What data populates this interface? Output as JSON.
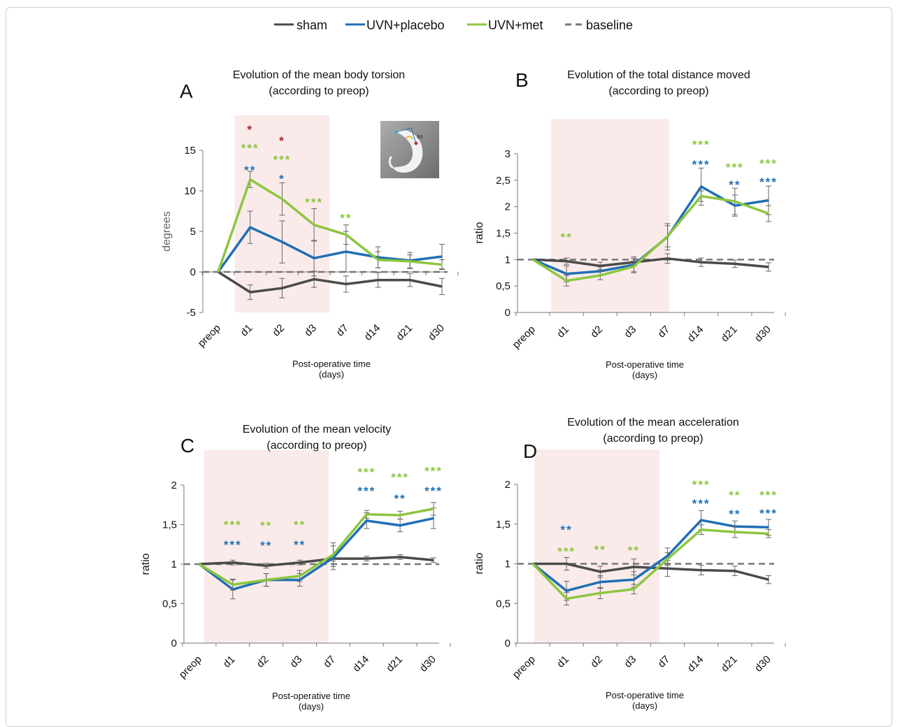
{
  "legend": [
    {
      "name": "sham",
      "color": "#4a4a4a",
      "dash": false
    },
    {
      "name": "UVN+placebo",
      "color": "#1f6fb5",
      "dash": false
    },
    {
      "name": "UVN+met",
      "color": "#8cc63f",
      "dash": false
    },
    {
      "name": "baseline",
      "color": "#777777",
      "dash": true
    }
  ],
  "chart_data": [
    {
      "panel": "A",
      "type": "line",
      "title_line1": "Evolution of the mean body torsion",
      "title_line2": "(according to preop)",
      "xlabel_line1": "Post-operative time",
      "xlabel_line2": "(days)",
      "ylabel": "degrees",
      "categories": [
        "preop",
        "d1",
        "d2",
        "d3",
        "d7",
        "d14",
        "d21",
        "d30"
      ],
      "ylim": [
        -5,
        15
      ],
      "yticks": [
        -5,
        0,
        5,
        10,
        15
      ],
      "yticklabels": [
        "-5",
        "0",
        "5",
        "10",
        "15"
      ],
      "shade": [
        1,
        3
      ],
      "series": [
        {
          "name": "sham",
          "values": [
            0,
            -2.5,
            -2,
            -0.9,
            -1.5,
            -1,
            -1,
            -1.8
          ],
          "err": [
            0,
            0.9,
            1.2,
            1,
            1,
            0.9,
            0.8,
            1
          ],
          "color": "#4a4a4a"
        },
        {
          "name": "UVN+placebo",
          "values": [
            0,
            5.5,
            3.7,
            1.7,
            2.5,
            1.8,
            1.4,
            1.9
          ],
          "err": [
            0,
            2,
            2.6,
            2.2,
            2.5,
            1.3,
            1,
            1.5
          ],
          "color": "#1f6fb5"
        },
        {
          "name": "UVN+met",
          "values": [
            0,
            11.4,
            9,
            5.8,
            4.6,
            1.5,
            1.3,
            0.9
          ],
          "err": [
            0,
            1,
            2,
            2,
            1.2,
            1,
            0.8,
            0.6
          ],
          "color": "#8cc63f"
        },
        {
          "name": "baseline",
          "values": [
            0,
            0,
            0,
            0,
            0,
            0,
            0,
            0
          ],
          "color": "#777777",
          "dash": true
        }
      ],
      "stars": [
        {
          "x": 1,
          "y": 17.6,
          "text": "*",
          "color": "#b01c1c"
        },
        {
          "x": 2,
          "y": 16.2,
          "text": "*",
          "color": "#b01c1c"
        },
        {
          "x": 1,
          "y": 15.3,
          "text": "***",
          "color": "#8cc63f"
        },
        {
          "x": 2,
          "y": 13.9,
          "text": "***",
          "color": "#8cc63f"
        },
        {
          "x": 1,
          "y": 12.6,
          "text": "**",
          "color": "#1f6fb5"
        },
        {
          "x": 2,
          "y": 11.5,
          "text": "*",
          "color": "#1f6fb5"
        },
        {
          "x": 3,
          "y": 8.6,
          "text": "***",
          "color": "#8cc63f"
        },
        {
          "x": 4,
          "y": 6.7,
          "text": "**",
          "color": "#8cc63f"
        }
      ]
    },
    {
      "panel": "B",
      "type": "line",
      "title_line1": "Evolution of the total distance moved",
      "title_line2": "(according to preop)",
      "xlabel_line1": "Post-operative time",
      "xlabel_line2": "(days)",
      "ylabel": "ratio",
      "categories": [
        "preop",
        "d1",
        "d2",
        "d3",
        "d7",
        "d14",
        "d21",
        "d30"
      ],
      "ylim": [
        0,
        3
      ],
      "yticks": [
        0,
        0.5,
        1,
        1.5,
        2,
        2.5,
        3
      ],
      "yticklabels": [
        "0",
        "0,5",
        "1",
        "1,5",
        "2",
        "2,5",
        "3"
      ],
      "shade": [
        1,
        3.6
      ],
      "series": [
        {
          "name": "sham",
          "values": [
            1,
            0.97,
            0.88,
            0.95,
            1.02,
            0.95,
            0.92,
            0.86
          ],
          "err": [
            0,
            0.06,
            0.07,
            0.07,
            0.09,
            0.08,
            0.07,
            0.08
          ],
          "color": "#4a4a4a"
        },
        {
          "name": "UVN+placebo",
          "values": [
            1,
            0.73,
            0.78,
            0.9,
            1.43,
            2.38,
            2.02,
            2.12
          ],
          "err": [
            0,
            0.15,
            0.08,
            0.15,
            0.25,
            0.35,
            0.2,
            0.27
          ],
          "color": "#1f6fb5"
        },
        {
          "name": "UVN+met",
          "values": [
            1,
            0.6,
            0.7,
            0.87,
            1.44,
            2.2,
            2.1,
            1.87
          ],
          "err": [
            0,
            0.1,
            0.08,
            0.1,
            0.2,
            0.1,
            0.25,
            0.15
          ],
          "color": "#8cc63f"
        },
        {
          "name": "baseline",
          "values": [
            1,
            1,
            1,
            1,
            1,
            1,
            1,
            1
          ],
          "color": "#777777",
          "dash": true
        }
      ],
      "stars": [
        {
          "x": 1,
          "y": 1.43,
          "text": "**",
          "color": "#8cc63f"
        },
        {
          "x": 5,
          "y": 3.18,
          "text": "***",
          "color": "#8cc63f"
        },
        {
          "x": 5,
          "y": 2.8,
          "text": "***",
          "color": "#1f6fb5"
        },
        {
          "x": 6,
          "y": 2.75,
          "text": "***",
          "color": "#8cc63f"
        },
        {
          "x": 6,
          "y": 2.42,
          "text": "**",
          "color": "#1f6fb5"
        },
        {
          "x": 7,
          "y": 2.82,
          "text": "***",
          "color": "#8cc63f"
        },
        {
          "x": 7,
          "y": 2.47,
          "text": "***",
          "color": "#1f6fb5"
        }
      ]
    },
    {
      "panel": "C",
      "type": "line",
      "title_line1": "Evolution of the mean velocity",
      "title_line2": "(according to preop)",
      "xlabel_line1": "Post-operative time",
      "xlabel_line2": "(days)",
      "ylabel": "ratio",
      "categories": [
        "preop",
        "d1",
        "d2",
        "d3",
        "d7",
        "d14",
        "d21",
        "d30"
      ],
      "ylim": [
        0,
        2
      ],
      "yticks": [
        0,
        0.5,
        1,
        1.5,
        2
      ],
      "yticklabels": [
        "0",
        "0,5",
        "1",
        "1,5",
        "2"
      ],
      "shade": [
        0.6,
        3.4
      ],
      "series": [
        {
          "name": "sham",
          "values": [
            1,
            1.02,
            0.98,
            1.02,
            1.07,
            1.07,
            1.09,
            1.05
          ],
          "err": [
            0,
            0.03,
            0.03,
            0.03,
            0.03,
            0.03,
            0.03,
            0.03
          ],
          "color": "#4a4a4a"
        },
        {
          "name": "UVN+placebo",
          "values": [
            1,
            0.68,
            0.8,
            0.8,
            1.08,
            1.55,
            1.49,
            1.58
          ],
          "err": [
            0,
            0.12,
            0.08,
            0.08,
            0.15,
            0.1,
            0.08,
            0.13
          ],
          "color": "#1f6fb5"
        },
        {
          "name": "UVN+met",
          "values": [
            1,
            0.74,
            0.8,
            0.85,
            1.12,
            1.63,
            1.62,
            1.7
          ],
          "err": [
            0,
            0.07,
            0.08,
            0.07,
            0.15,
            0.05,
            0.05,
            0.08
          ],
          "color": "#8cc63f"
        },
        {
          "name": "baseline",
          "values": [
            1,
            1,
            1,
            1,
            1,
            1,
            1,
            1
          ],
          "color": "#777777",
          "dash": true
        }
      ],
      "stars": [
        {
          "x": 1,
          "y": 1.5,
          "text": "***",
          "color": "#8cc63f"
        },
        {
          "x": 1,
          "y": 1.25,
          "text": "***",
          "color": "#1f6fb5"
        },
        {
          "x": 2,
          "y": 1.49,
          "text": "**",
          "color": "#8cc63f"
        },
        {
          "x": 2,
          "y": 1.24,
          "text": "**",
          "color": "#1f6fb5"
        },
        {
          "x": 3,
          "y": 1.5,
          "text": "**",
          "color": "#8cc63f"
        },
        {
          "x": 3,
          "y": 1.25,
          "text": "**",
          "color": "#1f6fb5"
        },
        {
          "x": 5,
          "y": 2.17,
          "text": "***",
          "color": "#8cc63f"
        },
        {
          "x": 5,
          "y": 1.93,
          "text": "***",
          "color": "#1f6fb5"
        },
        {
          "x": 6,
          "y": 2.1,
          "text": "***",
          "color": "#8cc63f"
        },
        {
          "x": 6,
          "y": 1.83,
          "text": "**",
          "color": "#1f6fb5"
        },
        {
          "x": 7,
          "y": 2.18,
          "text": "***",
          "color": "#8cc63f"
        },
        {
          "x": 7,
          "y": 1.93,
          "text": "***",
          "color": "#1f6fb5"
        }
      ]
    },
    {
      "panel": "D",
      "type": "line",
      "title_line1": "Evolution of the mean acceleration",
      "title_line2": "(according to preop)",
      "xlabel_line1": "Post-operative time",
      "xlabel_line2": "(days)",
      "ylabel": "ratio",
      "categories": [
        "preop",
        "d1",
        "d2",
        "d3",
        "d7",
        "d14",
        "d21",
        "d30"
      ],
      "ylim": [
        0,
        2
      ],
      "yticks": [
        0,
        0.5,
        1,
        1.5,
        2
      ],
      "yticklabels": [
        "0",
        "0,5",
        "1",
        "1,5",
        "2"
      ],
      "shade": [
        0.5,
        3.3
      ],
      "series": [
        {
          "name": "sham",
          "values": [
            1,
            1,
            0.9,
            0.96,
            0.94,
            0.92,
            0.91,
            0.8
          ],
          "err": [
            0,
            0.08,
            0.07,
            0.1,
            0.1,
            0.06,
            0.06,
            0.05
          ],
          "color": "#4a4a4a"
        },
        {
          "name": "UVN+placebo",
          "values": [
            1,
            0.66,
            0.77,
            0.8,
            1.1,
            1.55,
            1.47,
            1.46
          ],
          "err": [
            0,
            0.12,
            0.08,
            0.1,
            0.1,
            0.12,
            0.07,
            0.1
          ],
          "color": "#1f6fb5"
        },
        {
          "name": "UVN+met",
          "values": [
            1,
            0.56,
            0.63,
            0.68,
            1.06,
            1.43,
            1.4,
            1.38
          ],
          "err": [
            0,
            0.08,
            0.07,
            0.06,
            0.08,
            0.06,
            0.07,
            0.05
          ],
          "color": "#8cc63f"
        },
        {
          "name": "baseline",
          "values": [
            1,
            1,
            1,
            1,
            1,
            1,
            1,
            1
          ],
          "color": "#777777",
          "dash": true
        }
      ],
      "stars": [
        {
          "x": 1,
          "y": 1.43,
          "text": "**",
          "color": "#1f6fb5"
        },
        {
          "x": 1,
          "y": 1.16,
          "text": "***",
          "color": "#8cc63f"
        },
        {
          "x": 2,
          "y": 1.18,
          "text": "**",
          "color": "#8cc63f"
        },
        {
          "x": 3,
          "y": 1.17,
          "text": "**",
          "color": "#8cc63f"
        },
        {
          "x": 5,
          "y": 2.0,
          "text": "***",
          "color": "#8cc63f"
        },
        {
          "x": 5,
          "y": 1.76,
          "text": "***",
          "color": "#1f6fb5"
        },
        {
          "x": 6,
          "y": 1.87,
          "text": "**",
          "color": "#8cc63f"
        },
        {
          "x": 6,
          "y": 1.63,
          "text": "**",
          "color": "#1f6fb5"
        },
        {
          "x": 7,
          "y": 1.87,
          "text": "***",
          "color": "#8cc63f"
        },
        {
          "x": 7,
          "y": 1.64,
          "text": "***",
          "color": "#1f6fb5"
        }
      ]
    }
  ]
}
